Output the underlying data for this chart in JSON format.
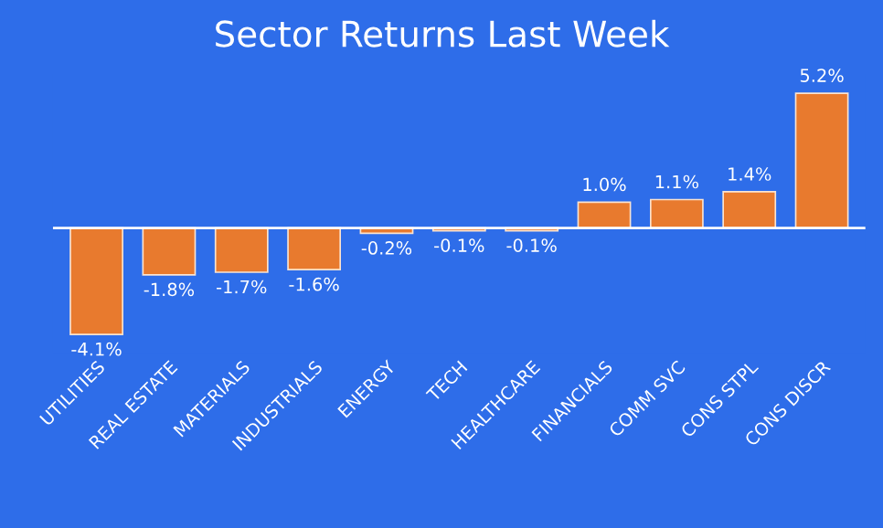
{
  "chart_data": {
    "type": "bar",
    "title": "Sector Returns Last Week",
    "categories": [
      "UTILITIES",
      "REAL ESTATE",
      "MATERIALS",
      "INDUSTRIALS",
      "ENERGY",
      "TECH",
      "HEALTHCARE",
      "FINANCIALS",
      "COMM SVC",
      "CONS STPL",
      "CONS DISCR"
    ],
    "values": [
      -4.1,
      -1.8,
      -1.7,
      -1.6,
      -0.2,
      -0.1,
      -0.1,
      1.0,
      1.1,
      1.4,
      5.2
    ],
    "value_labels": [
      "-4.1%",
      "-1.8%",
      "-1.7%",
      "-1.6%",
      "-0.2%",
      "-0.1%",
      "-0.1%",
      "1.0%",
      "1.1%",
      "1.4%",
      "5.2%"
    ],
    "color": "#e87a2e",
    "grid": false,
    "legend": false
  }
}
